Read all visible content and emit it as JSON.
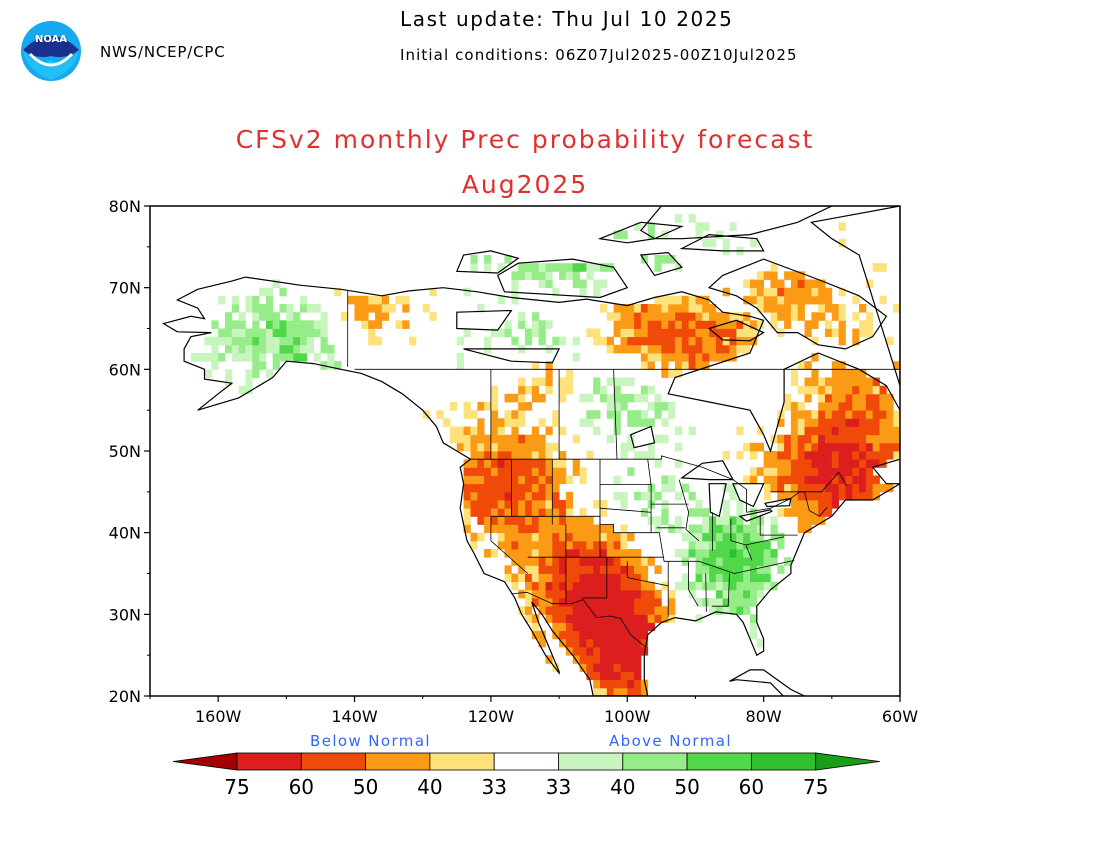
{
  "header": {
    "agency": "NWS/NCEP/CPC",
    "last_update": "Last update: Thu Jul 10 2025",
    "initial_conditions": "Initial conditions: 06Z07Jul2025-00Z10Jul2025"
  },
  "logo": {
    "text": "NOAA"
  },
  "title": {
    "line1": "CFSv2 monthly Prec probability forecast",
    "line2": "Aug2025",
    "color": "#e03030"
  },
  "map": {
    "region": "North America",
    "projection": "cylindrical equidistant",
    "lon_range": [
      -170,
      -60
    ],
    "lat_range": [
      20,
      80
    ],
    "lat_ticks": [
      "80N",
      "70N",
      "60N",
      "50N",
      "40N",
      "30N",
      "20N"
    ],
    "lon_ticks": [
      "160W",
      "140W",
      "120W",
      "100W",
      "80W",
      "60W"
    ],
    "shading": [
      {
        "region": "Southern Rockies / southern Plains / Texas / Mexican highlands",
        "category": "below",
        "level": "40-70"
      },
      {
        "region": "Pacific Northwest / Northern Rockies",
        "category": "below",
        "level": "40-60"
      },
      {
        "region": "Northeast US / southeastern Canada / Maritimes",
        "category": "below",
        "level": "40-70"
      },
      {
        "region": "Hudson Bay north shore / Nunavut",
        "category": "below",
        "level": "40-60"
      },
      {
        "region": "Yukon / northern British Columbia",
        "category": "below",
        "level": "40-60"
      },
      {
        "region": "Southeast US / Tennessee and Ohio valleys / Carolinas",
        "category": "above",
        "level": "33-60"
      },
      {
        "region": "Alaska interior",
        "category": "above",
        "level": "33-50"
      },
      {
        "region": "Northern Canadian prairies / Northwest Territories",
        "category": "above",
        "level": "33-50"
      },
      {
        "region": "Canadian Arctic Archipelago",
        "category": "above",
        "level": "33-50"
      }
    ]
  },
  "legend": {
    "below_label": "Below Normal",
    "above_label": "Above Normal",
    "label_color": "#3366ff",
    "tick_labels": [
      "75",
      "60",
      "50",
      "40",
      "33",
      "33",
      "40",
      "50",
      "60",
      "75"
    ],
    "colors": [
      "#a50000",
      "#dd1e1e",
      "#f04a0a",
      "#fb9a14",
      "#fde17a",
      "#ffffff",
      "#c8f5be",
      "#96ec88",
      "#50d848",
      "#30c030",
      "#1a9e1a"
    ]
  }
}
